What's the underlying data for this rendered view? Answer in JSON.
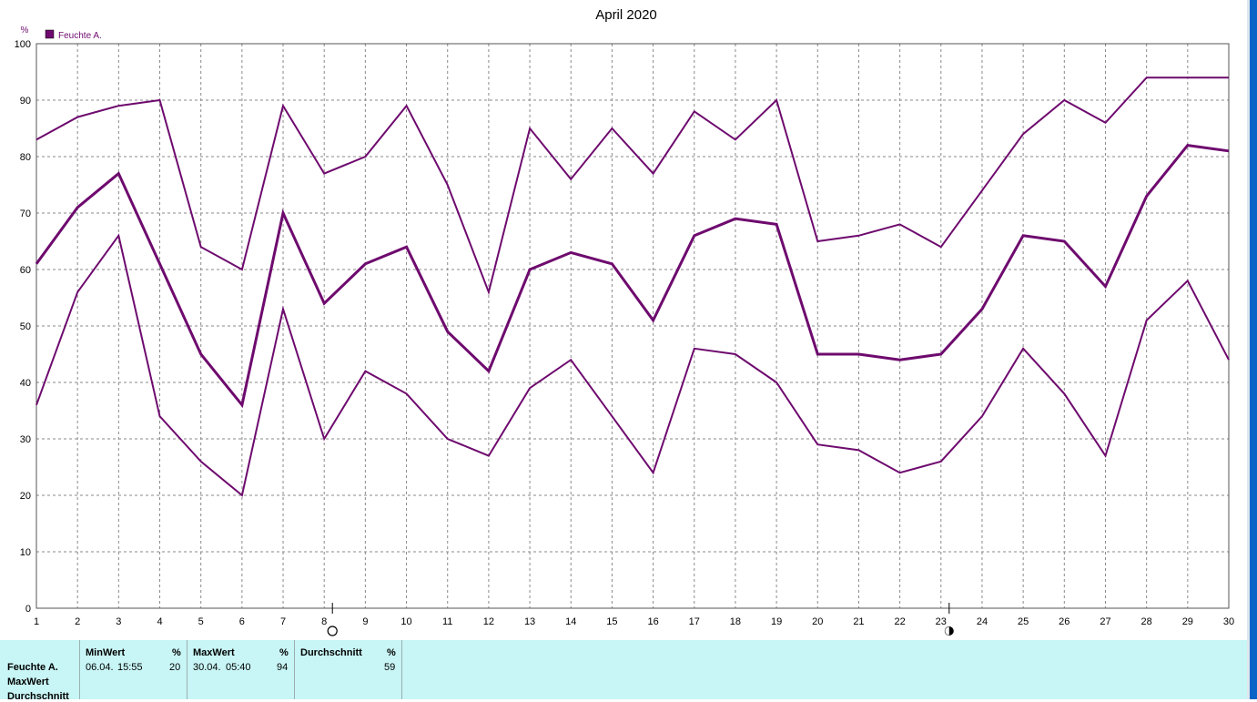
{
  "chart_data": {
    "type": "line",
    "title": "April 2020",
    "y_unit": "%",
    "ylim": [
      0,
      100
    ],
    "yticks": [
      "0",
      "10",
      "20",
      "30",
      "40",
      "50",
      "60",
      "70",
      "80",
      "90",
      "100"
    ],
    "categories": [
      "1",
      "2",
      "3",
      "4",
      "5",
      "6",
      "7",
      "8",
      "9",
      "10",
      "11",
      "12",
      "13",
      "14",
      "15",
      "16",
      "17",
      "18",
      "19",
      "20",
      "21",
      "22",
      "23",
      "24",
      "25",
      "26",
      "27",
      "28",
      "29",
      "30"
    ],
    "legend": {
      "label": "Feuchte A.",
      "placement": "top-left"
    },
    "grid": true,
    "color": "#6e0a6e",
    "series": [
      {
        "role": "max",
        "values": [
          83,
          87,
          89,
          90,
          64,
          60,
          89,
          77,
          80,
          89,
          75,
          56,
          85,
          76,
          85,
          77,
          88,
          83,
          90,
          65,
          66,
          68,
          64,
          74,
          84,
          90,
          86,
          94,
          94,
          94
        ]
      },
      {
        "role": "avg",
        "values": [
          61,
          71,
          77,
          61,
          45,
          36,
          70,
          54,
          61,
          64,
          49,
          42,
          60,
          63,
          61,
          51,
          66,
          69,
          68,
          45,
          45,
          44,
          45,
          53,
          66,
          65,
          57,
          73,
          82,
          81
        ]
      },
      {
        "role": "min",
        "values": [
          36,
          56,
          66,
          34,
          26,
          20,
          53,
          30,
          42,
          38,
          30,
          27,
          39,
          44,
          34,
          24,
          46,
          45,
          40,
          29,
          28,
          24,
          26,
          34,
          46,
          38,
          27,
          51,
          58,
          44
        ]
      }
    ],
    "markers": [
      {
        "day": "8",
        "symbol": "open-circle"
      },
      {
        "day": "23",
        "symbol": "half-filled-circle"
      }
    ]
  },
  "table": {
    "row_labels": [
      "Feuchte A.",
      "MaxWert",
      "Durchschnitt"
    ],
    "columns": [
      {
        "header": "MinWert",
        "unit": "%",
        "date": "06.04.",
        "time": "15:55",
        "value": "20"
      },
      {
        "header": "MaxWert",
        "unit": "%",
        "date": "30.04.",
        "time": "05:40",
        "value": "94"
      },
      {
        "header": "Durchschnitt",
        "unit": "%",
        "value": "59"
      }
    ]
  }
}
